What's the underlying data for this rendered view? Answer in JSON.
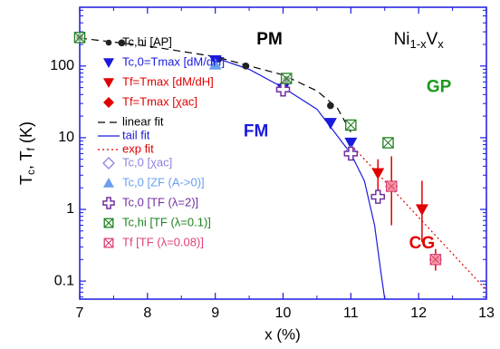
{
  "chart_data": {
    "type": "scatter",
    "xlabel": "x (%)",
    "ylabel": [
      "T",
      "c",
      ", T",
      "f",
      " (K)"
    ],
    "xlim": [
      7,
      13
    ],
    "xticks": [
      7,
      8,
      9,
      10,
      11,
      12,
      13
    ],
    "ylim": [
      0.056,
      660
    ],
    "log_y": true,
    "yticks": [
      0.1,
      1,
      10,
      100
    ],
    "annotations": [
      {
        "text": "PM",
        "x": 9.8,
        "y": 230,
        "color": "#000000"
      },
      {
        "text": "FM",
        "x": 9.6,
        "y": 12,
        "color": "#1a1adf"
      },
      {
        "text": "GP",
        "x": 12.3,
        "y": 50,
        "color": "#1a9a1a"
      },
      {
        "text": "CG",
        "x": 12.05,
        "y": 0.33,
        "color": "#e00000"
      }
    ],
    "compound": {
      "parts": [
        "Ni",
        "1-x",
        "V",
        "x"
      ],
      "x": 12.0,
      "y": 230
    },
    "series": [
      {
        "name": "Tc,hi [AP]",
        "marker": "circle",
        "color": "#222222",
        "x": [
          7.0,
          7.62,
          9.05,
          9.45,
          10.05,
          10.7
        ],
        "values": [
          250,
          210,
          125,
          100,
          65,
          28
        ]
      },
      {
        "name": "Tc,0=Tmax [dM/dH]",
        "marker": "tri-down",
        "color": "#1a1adf",
        "x": [
          9.0,
          10.0,
          10.7,
          11.0
        ],
        "values": [
          120,
          48,
          16,
          8.5
        ]
      },
      {
        "name": "Tf=Tmax [dM/dH]",
        "marker": "tri-down",
        "color": "#e00000",
        "x": [
          11.4,
          12.05
        ],
        "values": [
          3.2,
          1.0
        ],
        "err_low": [
          1.5,
          0.35
        ],
        "err_high": [
          5,
          2.5
        ]
      },
      {
        "name": "Tf=Tmax [χac]",
        "marker": "diamond",
        "color": "#e00000",
        "x": [
          11.6,
          12.25
        ],
        "values": [
          2.1,
          0.2
        ],
        "err_low": [
          0.6,
          0.14
        ],
        "err_high": [
          5.5,
          0.28
        ]
      },
      {
        "name": "linear fit",
        "line": "dashed",
        "color": "#000000",
        "x": [
          7.0,
          8.0,
          9.0,
          10.0,
          10.5,
          10.8,
          11.0
        ],
        "values": [
          245,
          190,
          135,
          75,
          45,
          26,
          12
        ]
      },
      {
        "name": "tail fit",
        "line": "solid",
        "color": "#1a1adf",
        "x": [
          9.0,
          9.5,
          10.0,
          10.5,
          11.0,
          11.2,
          11.35,
          11.45,
          11.5
        ],
        "values": [
          130,
          90,
          50,
          25,
          6,
          2.5,
          0.6,
          0.12,
          0.056
        ]
      },
      {
        "name": "exp fit",
        "line": "dotted",
        "color": "#e00000",
        "x": [
          11.0,
          13.0
        ],
        "values": [
          8,
          0.075
        ]
      },
      {
        "name": "Tc,0 [χac]",
        "marker": "diamond-open",
        "color": "#8f80e0",
        "x": [
          11.0
        ],
        "values": [
          6.2
        ]
      },
      {
        "name": "Tc,0 [ZF (A->0)]",
        "marker": "tri-up",
        "color": "#6a9fef",
        "x": [
          9.0
        ],
        "values": [
          105
        ]
      },
      {
        "name": "Tc,0 [TF (λ=2)]",
        "marker": "cross-open",
        "color": "#7030a0",
        "x": [
          10.0,
          11.0,
          11.4
        ],
        "values": [
          47,
          6,
          1.5
        ]
      },
      {
        "name": "Tc,hi [TF (λ=0.1)]",
        "marker": "box-x",
        "color": "#208020",
        "x": [
          7.0,
          10.05,
          11.0,
          11.55
        ],
        "values": [
          250,
          67,
          15,
          8.5
        ]
      },
      {
        "name": "Tf [TF (λ=0.08)]",
        "marker": "box-x",
        "color": "#e0407a",
        "x": [
          11.6,
          12.25
        ],
        "values": [
          2.1,
          0.2
        ]
      }
    ]
  }
}
